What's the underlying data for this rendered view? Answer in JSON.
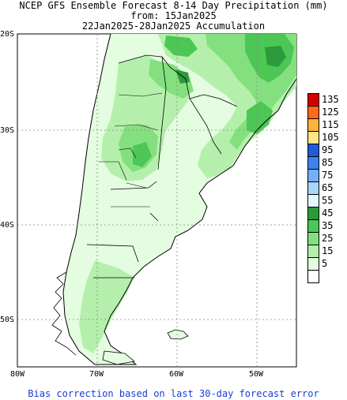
{
  "title": {
    "line1": "NCEP GFS Ensemble Forecast 8-14 Day Precipitation (mm)",
    "line2": "from: 15Jan2025",
    "line3": "22Jan2025-28Jan2025 Accumulation"
  },
  "axes": {
    "lat_labels": [
      "20S",
      "30S",
      "40S",
      "50S"
    ],
    "lon_labels": [
      "80W",
      "70W",
      "60W",
      "50W"
    ]
  },
  "legend": {
    "bins": [
      {
        "label": "135",
        "color": "#d40000"
      },
      {
        "label": "125",
        "color": "#ff6a1a"
      },
      {
        "label": "115",
        "color": "#ffb23c"
      },
      {
        "label": "105",
        "color": "#ffe488"
      },
      {
        "label": "95",
        "color": "#1f5ad8"
      },
      {
        "label": "85",
        "color": "#3c82f0"
      },
      {
        "label": "75",
        "color": "#74b0f8"
      },
      {
        "label": "65",
        "color": "#a6d6fa"
      },
      {
        "label": "55",
        "color": "#e0f8ff"
      },
      {
        "label": "45",
        "color": "#2a9a3a"
      },
      {
        "label": "35",
        "color": "#4cc654"
      },
      {
        "label": "25",
        "color": "#84e07e"
      },
      {
        "label": "15",
        "color": "#b4f0ac"
      },
      {
        "label": "5",
        "color": "#e4fce0"
      },
      {
        "label": "",
        "color": "#ffffff"
      }
    ]
  },
  "footer": "Bias correction based on last 30-day forecast error"
}
